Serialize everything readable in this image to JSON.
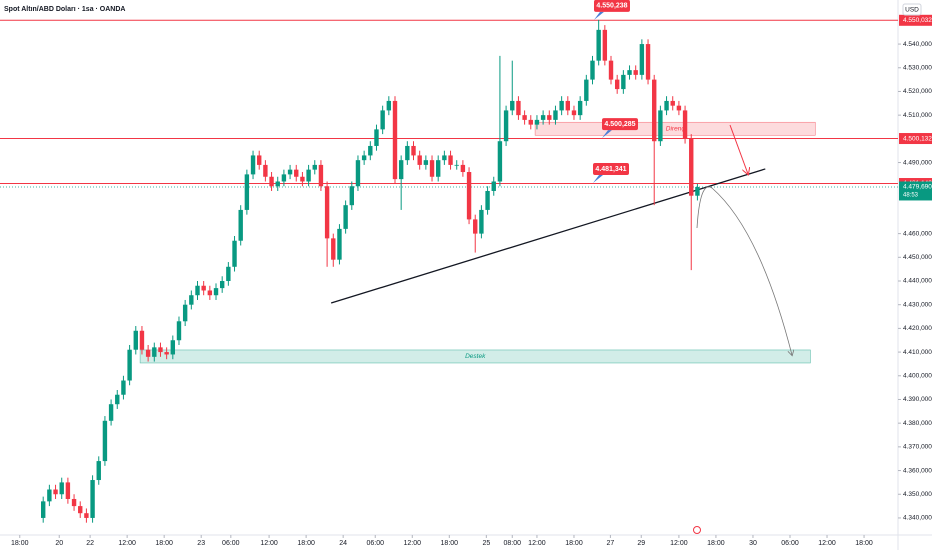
{
  "chart_data": {
    "type": "candlestick",
    "title": "Spot Altın/ABD Doları · 1sa · OANDA",
    "currency": "USD",
    "up_color": "#089981",
    "down_color": "#f23645",
    "xlim": [
      -7,
      138.5
    ],
    "ylim": [
      4332.8,
      4558.6
    ],
    "xticks": [
      {
        "value": -3.8,
        "label": "18:00"
      },
      {
        "value": 2.6,
        "label": "20"
      },
      {
        "value": 7.6,
        "label": "22"
      },
      {
        "value": 13.6,
        "label": "12:00"
      },
      {
        "value": 19.6,
        "label": "18:00"
      },
      {
        "value": 25.6,
        "label": "23"
      },
      {
        "value": 30.4,
        "label": "06:00"
      },
      {
        "value": 36.6,
        "label": "12:00"
      },
      {
        "value": 42.6,
        "label": "18:00"
      },
      {
        "value": 48.6,
        "label": "24"
      },
      {
        "value": 53.8,
        "label": "06:00"
      },
      {
        "value": 59.8,
        "label": "12:00"
      },
      {
        "value": 65.8,
        "label": "18:00"
      },
      {
        "value": 71.8,
        "label": "25"
      },
      {
        "value": 76,
        "label": "08:00"
      },
      {
        "value": 80,
        "label": "12:00"
      },
      {
        "value": 86,
        "label": "18:00"
      },
      {
        "value": 91.9,
        "label": "27"
      },
      {
        "value": 96.9,
        "label": "29"
      },
      {
        "value": 103,
        "label": "12:00"
      },
      {
        "value": 109,
        "label": "18:00"
      },
      {
        "value": 115,
        "label": "30"
      },
      {
        "value": 121,
        "label": "06:00"
      },
      {
        "value": 127,
        "label": "12:00"
      },
      {
        "value": 133,
        "label": "18:00"
      }
    ],
    "yticks": [
      {
        "value": 4340,
        "label": "4.340,000"
      },
      {
        "value": 4350,
        "label": "4.350,000"
      },
      {
        "value": 4360,
        "label": "4.360,000"
      },
      {
        "value": 4370,
        "label": "4.370,000"
      },
      {
        "value": 4380,
        "label": "4.380,000"
      },
      {
        "value": 4390,
        "label": "4.390,000"
      },
      {
        "value": 4400,
        "label": "4.400,000"
      },
      {
        "value": 4410,
        "label": "4.410,000"
      },
      {
        "value": 4420,
        "label": "4.420,000"
      },
      {
        "value": 4430,
        "label": "4.430,000"
      },
      {
        "value": 4440,
        "label": "4.440,000"
      },
      {
        "value": 4450,
        "label": "4.450,000"
      },
      {
        "value": 4460,
        "label": "4.460,000"
      },
      {
        "value": 4490,
        "label": "4.490,000"
      },
      {
        "value": 4510,
        "label": "4.510,000"
      },
      {
        "value": 4520,
        "label": "4.520,000"
      },
      {
        "value": 4530,
        "label": "4.530,000"
      },
      {
        "value": 4540,
        "label": "4.540,000"
      }
    ],
    "candles": [
      [
        4340,
        4349,
        4338,
        4347
      ],
      [
        4347,
        4354,
        4345,
        4352
      ],
      [
        4352,
        4354,
        4348,
        4350
      ],
      [
        4350,
        4357,
        4348,
        4355
      ],
      [
        4355,
        4357,
        4346,
        4348
      ],
      [
        4348,
        4350,
        4343,
        4345
      ],
      [
        4345,
        4347,
        4340,
        4342
      ],
      [
        4342,
        4344,
        4338,
        4340
      ],
      [
        4340,
        4358,
        4338,
        4356
      ],
      [
        4356,
        4366,
        4354,
        4364
      ],
      [
        4364,
        4383,
        4362,
        4381
      ],
      [
        4381,
        4390,
        4379,
        4388
      ],
      [
        4388,
        4394,
        4386,
        4392
      ],
      [
        4392,
        4400,
        4390,
        4398
      ],
      [
        4398,
        4413,
        4396,
        4411
      ],
      [
        4411,
        4421,
        4409,
        4419
      ],
      [
        4419,
        4421,
        4409,
        4411
      ],
      [
        4411,
        4413,
        4406,
        4408
      ],
      [
        4408,
        4414,
        4406,
        4412
      ],
      [
        4412,
        4414,
        4408,
        4410
      ],
      [
        4410,
        4412,
        4407,
        4409
      ],
      [
        4409,
        4417,
        4407,
        4415
      ],
      [
        4415,
        4425,
        4413,
        4423
      ],
      [
        4423,
        4432,
        4421,
        4430
      ],
      [
        4430,
        4436,
        4428,
        4434
      ],
      [
        4434,
        4440,
        4432,
        4438
      ],
      [
        4438,
        4440,
        4434,
        4436
      ],
      [
        4436,
        4438,
        4432,
        4434
      ],
      [
        4434,
        4439,
        4432,
        4437
      ],
      [
        4437,
        4442,
        4435,
        4440
      ],
      [
        4440,
        4448,
        4438,
        4446
      ],
      [
        4446,
        4459,
        4444,
        4457
      ],
      [
        4457,
        4472,
        4455,
        4470
      ],
      [
        4470,
        4487,
        4468,
        4485
      ],
      [
        4485,
        4495,
        4483,
        4493
      ],
      [
        4493,
        4495,
        4487,
        4489
      ],
      [
        4489,
        4491,
        4482,
        4484
      ],
      [
        4484,
        4486,
        4478,
        4480
      ],
      [
        4480,
        4484,
        4478,
        4482
      ],
      [
        4482,
        4487,
        4480,
        4485
      ],
      [
        4485,
        4489,
        4483,
        4487
      ],
      [
        4487,
        4489,
        4482,
        4484
      ],
      [
        4484,
        4486,
        4480,
        4482
      ],
      [
        4482,
        4489,
        4480,
        4487
      ],
      [
        4487,
        4491,
        4485,
        4489
      ],
      [
        4489,
        4491,
        4478,
        4480
      ],
      [
        4480,
        4482,
        4446,
        4458
      ],
      [
        4458,
        4460,
        4446,
        4449
      ],
      [
        4449,
        4464,
        4447,
        4462
      ],
      [
        4462,
        4474,
        4460,
        4472
      ],
      [
        4472,
        4482,
        4470,
        4480
      ],
      [
        4480,
        4493,
        4478,
        4491
      ],
      [
        4491,
        4495,
        4489,
        4493
      ],
      [
        4493,
        4499,
        4491,
        4497
      ],
      [
        4497,
        4506,
        4495,
        4504
      ],
      [
        4504,
        4514,
        4502,
        4512
      ],
      [
        4512,
        4518,
        4510,
        4516
      ],
      [
        4516,
        4518,
        4481,
        4483
      ],
      [
        4483,
        4493,
        4470,
        4491
      ],
      [
        4491,
        4499,
        4489,
        4497
      ],
      [
        4497,
        4499,
        4491,
        4493
      ],
      [
        4493,
        4495,
        4487,
        4489
      ],
      [
        4489,
        4493,
        4487,
        4491
      ],
      [
        4491,
        4493,
        4482,
        4484
      ],
      [
        4484,
        4493,
        4482,
        4491
      ],
      [
        4491,
        4495,
        4489,
        4493
      ],
      [
        4493,
        4495,
        4487,
        4489
      ],
      [
        4489,
        4491,
        4487,
        4489
      ],
      [
        4489,
        4491,
        4484,
        4486
      ],
      [
        4486,
        4488,
        4464,
        4466
      ],
      [
        4466,
        4468,
        4452,
        4460
      ],
      [
        4460,
        4472,
        4458,
        4470
      ],
      [
        4470,
        4480,
        4468,
        4478
      ],
      [
        4478,
        4484,
        4476,
        4482
      ],
      [
        4482,
        4535,
        4480,
        4499
      ],
      [
        4499,
        4514,
        4497,
        4512
      ],
      [
        4512,
        4533,
        4510,
        4516
      ],
      [
        4516,
        4518,
        4508,
        4510
      ],
      [
        4510,
        4512,
        4506,
        4508
      ],
      [
        4508,
        4510,
        4504,
        4506
      ],
      [
        4506,
        4510,
        4504,
        4508
      ],
      [
        4508,
        4512,
        4506,
        4510
      ],
      [
        4510,
        4512,
        4506,
        4508
      ],
      [
        4508,
        4514,
        4506,
        4512
      ],
      [
        4512,
        4518,
        4510,
        4516
      ],
      [
        4516,
        4518,
        4510,
        4512
      ],
      [
        4512,
        4514,
        4508,
        4510
      ],
      [
        4510,
        4518,
        4508,
        4516
      ],
      [
        4516,
        4527,
        4514,
        4525
      ],
      [
        4525,
        4535,
        4523,
        4533
      ],
      [
        4533,
        4550.2,
        4531,
        4546
      ],
      [
        4546,
        4548,
        4531,
        4533
      ],
      [
        4533,
        4535,
        4523,
        4525
      ],
      [
        4525,
        4527,
        4519,
        4521
      ],
      [
        4521,
        4529,
        4519,
        4527
      ],
      [
        4527,
        4531,
        4525,
        4529
      ],
      [
        4529,
        4531,
        4525,
        4527
      ],
      [
        4527,
        4542,
        4525,
        4540
      ],
      [
        4540,
        4542,
        4523,
        4525
      ],
      [
        4525,
        4527,
        4472,
        4499
      ],
      [
        4499,
        4514,
        4497,
        4512
      ],
      [
        4512,
        4518,
        4510,
        4516
      ],
      [
        4516,
        4518,
        4512,
        4514
      ],
      [
        4514,
        4516,
        4510,
        4512
      ],
      [
        4512,
        4514,
        4498,
        4500
      ],
      [
        4500,
        4502,
        4444.6,
        4476
      ],
      [
        4476,
        4481,
        4474,
        4479.7
      ]
    ],
    "levels": [
      {
        "value": 4550.032,
        "label": "4.550,032"
      },
      {
        "value": 4500.132,
        "label": "4.500,132"
      },
      {
        "value": 4481.142,
        "label": "4.481,142"
      }
    ],
    "last_price": {
      "value": 4479.69,
      "label": "4.479,690",
      "countdown": "48:53"
    },
    "callouts": [
      {
        "value": 4550.238,
        "label": "4.550,238"
      },
      {
        "value": 4500.285,
        "label": "4.500,285"
      },
      {
        "value": 4481.341,
        "label": "4.481,341"
      }
    ],
    "zones": [
      {
        "label": "Direnç",
        "x": [
          79.7,
          125.1
        ],
        "y": [
          4501.5,
          4507
        ],
        "color": "#f23645"
      },
      {
        "label": "Destek",
        "x": [
          15.7,
          124.3
        ],
        "y": [
          4405.4,
          4410.9
        ],
        "color": "#089981"
      }
    ],
    "trendline": {
      "x": [
        46.65,
        117
      ],
      "y": [
        4430.7,
        4487.3
      ]
    }
  }
}
